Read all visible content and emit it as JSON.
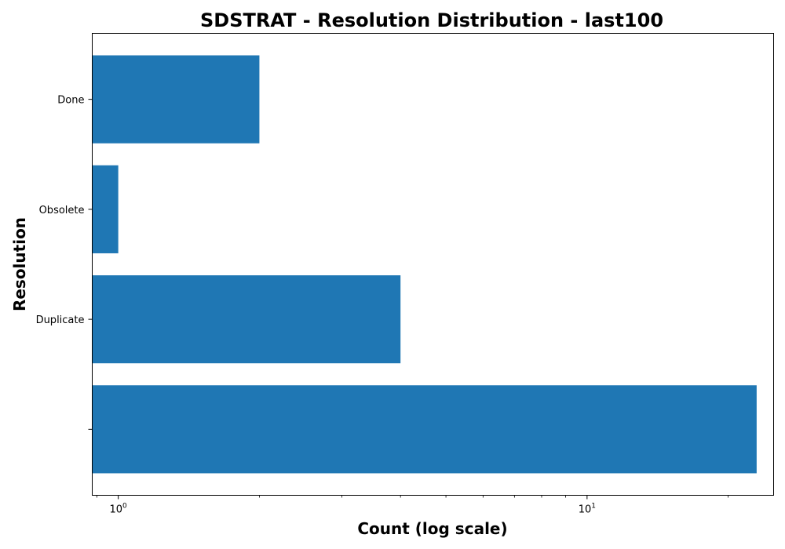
{
  "chart_data": {
    "type": "bar",
    "orientation": "horizontal",
    "title": "SDSTRAT - Resolution Distribution - last100",
    "xlabel": "Count (log scale)",
    "ylabel": "Resolution",
    "x_scale": "log",
    "xlim": [
      0.88,
      25
    ],
    "x_ticks": [
      {
        "value": 1,
        "base": "10",
        "exp": "0"
      },
      {
        "value": 10,
        "base": "10",
        "exp": "1"
      }
    ],
    "categories": [
      "",
      "Duplicate",
      "Obsolete",
      "Done"
    ],
    "values": [
      23,
      4,
      1,
      2
    ],
    "bar_color": "#1f77b4"
  }
}
